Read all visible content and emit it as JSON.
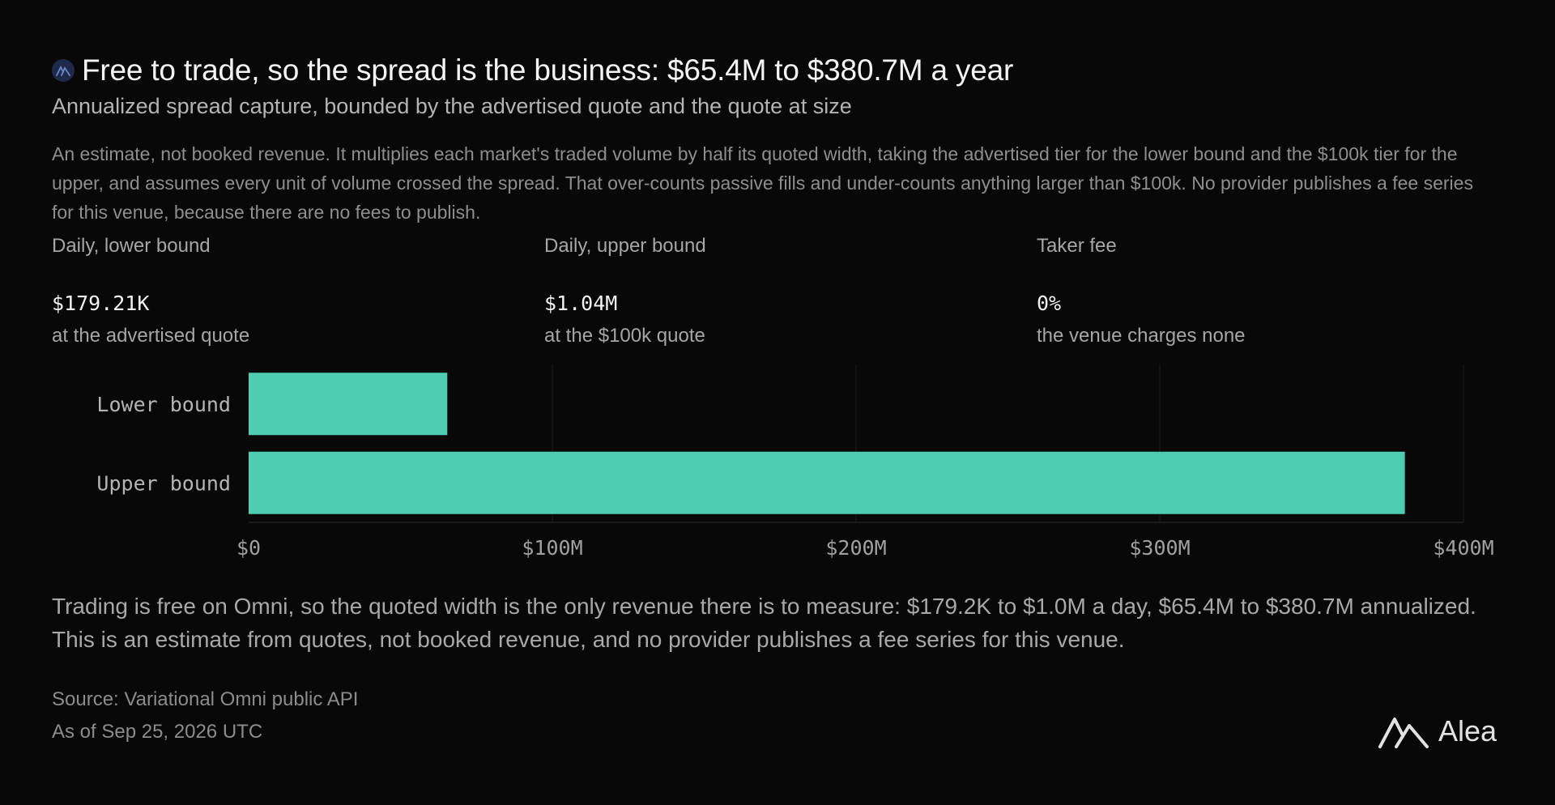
{
  "header": {
    "title": "Free to trade, so the spread is the business: $65.4M to $380.7M a year",
    "subtitle": "Annualized spread capture, bounded by the advertised quote and the quote at size",
    "note": "An estimate, not booked revenue. It multiplies each market's traded volume by half its quoted width, taking the advertised tier for the lower bound and the $100k tier for the upper, and assumes every unit of volume crossed the spread. That over-counts passive fills and under-counts anything larger than $100k. No provider publishes a fee series for this venue, because there are no fees to publish."
  },
  "stats": [
    {
      "label": "Daily, lower bound",
      "value": "$179.21K",
      "sub": "at the advertised quote"
    },
    {
      "label": "Daily, upper bound",
      "value": "$1.04M",
      "sub": "at the $100k quote"
    },
    {
      "label": "Taker fee",
      "value": "0%",
      "sub": "the venue charges none"
    }
  ],
  "chart_data": {
    "type": "bar",
    "orientation": "horizontal",
    "categories": [
      "Lower bound",
      "Upper bound"
    ],
    "values": [
      65.4,
      380.7
    ],
    "unit": "$M",
    "xlim": [
      0,
      400
    ],
    "xticks": [
      0,
      100,
      200,
      300,
      400
    ],
    "xtick_labels": [
      "$0",
      "$100M",
      "$200M",
      "$300M",
      "$400M"
    ],
    "grid": "vertical",
    "bar_color": "#4ecdb0"
  },
  "summary": "Trading is free on Omni, so the quoted width is the only revenue there is to measure: $179.2K to $1.0M a day, $65.4M to $380.7M annualized. This is an estimate from quotes, not booked revenue, and no provider publishes a fee series for this venue.",
  "footer": {
    "source": "Source: Variational Omni public API",
    "as_of": "As of Sep 25, 2026 UTC",
    "brand": "Alea"
  }
}
